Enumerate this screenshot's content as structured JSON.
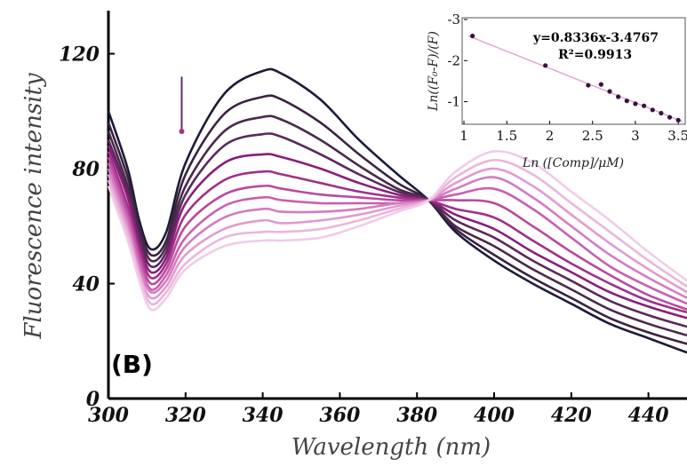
{
  "chart_data": [
    {
      "type": "line",
      "panel_label": "(B)",
      "xlabel": "Wavelength (nm)",
      "ylabel": "Fluorescence intensity",
      "xlim": [
        300,
        450
      ],
      "ylim": [
        0,
        135
      ],
      "xticks": [
        "300",
        "320",
        "340",
        "360",
        "380",
        "400",
        "420",
        "440"
      ],
      "yticks": [
        "0",
        "40",
        "80",
        "120"
      ],
      "ytick_values": [
        0,
        40,
        80,
        120
      ],
      "xtick_values": [
        300,
        320,
        340,
        360,
        380,
        400,
        420,
        440
      ],
      "grid": false,
      "arrow": {
        "x": 319,
        "y_from": 112,
        "y_to": 93,
        "color": "#b0307f"
      },
      "x": [
        300,
        305,
        308,
        311,
        315,
        320,
        330,
        340,
        345,
        355,
        365,
        375,
        383,
        390,
        400,
        410,
        420,
        430,
        440,
        450
      ],
      "series": [
        {
          "color": "#1e1b3a",
          "values": [
            100,
            80,
            62,
            52,
            58,
            82,
            106,
            114,
            113,
            104,
            90,
            78,
            69,
            58,
            48,
            40,
            33,
            26,
            21,
            16
          ]
        },
        {
          "color": "#3a2340",
          "values": [
            96,
            77,
            60,
            50,
            55,
            78,
            99,
            105,
            104,
            96,
            85,
            75,
            69,
            59,
            50,
            42,
            35,
            28,
            23,
            19
          ]
        },
        {
          "color": "#4a2a4c",
          "values": [
            93,
            74,
            58,
            48,
            53,
            74,
            93,
            98,
            97,
            90,
            81,
            73,
            69,
            60,
            53,
            45,
            38,
            31,
            26,
            22
          ]
        },
        {
          "color": "#5a2a5a",
          "values": [
            90,
            72,
            56,
            46,
            51,
            71,
            88,
            92,
            91,
            85,
            78,
            72,
            69,
            62,
            56,
            48,
            41,
            34,
            29,
            25
          ]
        },
        {
          "color": "#8a1e7a",
          "values": [
            88,
            70,
            54,
            44,
            49,
            68,
            82,
            85,
            84,
            80,
            75,
            71,
            69,
            64,
            59,
            51,
            44,
            37,
            32,
            28
          ]
        },
        {
          "color": "#a0308a",
          "values": [
            86,
            67,
            52,
            42,
            47,
            64,
            76,
            79,
            78,
            75,
            72,
            70,
            69,
            66,
            63,
            55,
            47,
            40,
            34,
            30
          ]
        },
        {
          "color": "#b84a9e",
          "values": [
            84,
            65,
            50,
            40,
            45,
            60,
            71,
            74,
            73,
            71,
            70,
            69,
            69,
            69,
            68,
            60,
            51,
            43,
            36,
            31
          ]
        },
        {
          "color": "#c860b0",
          "values": [
            82,
            63,
            48,
            38,
            43,
            56,
            67,
            70,
            69,
            68,
            68,
            68,
            69,
            71,
            73,
            66,
            56,
            46,
            39,
            33
          ]
        },
        {
          "color": "#d57bc0",
          "values": [
            80,
            61,
            46,
            37,
            41,
            53,
            63,
            66,
            65,
            65,
            66,
            68,
            69,
            73,
            77,
            70,
            60,
            50,
            42,
            35
          ]
        },
        {
          "color": "#e29ad0",
          "values": [
            78,
            59,
            44,
            35,
            39,
            50,
            59,
            62,
            61,
            62,
            64,
            67,
            69,
            75,
            80,
            74,
            64,
            54,
            45,
            37
          ]
        },
        {
          "color": "#eab6dc",
          "values": [
            76,
            57,
            43,
            33,
            37,
            47,
            56,
            58,
            58,
            59,
            62,
            66,
            69,
            77,
            83,
            78,
            68,
            58,
            48,
            39
          ]
        },
        {
          "color": "#f0cce8",
          "values": [
            74,
            55,
            41,
            31,
            35,
            45,
            53,
            55,
            55,
            56,
            60,
            65,
            69,
            79,
            86,
            82,
            72,
            62,
            51,
            41
          ]
        }
      ]
    },
    {
      "type": "scatter",
      "subtype": "inset-linear-fit",
      "xlabel": "Ln ([Comp]/μM)",
      "ylabel": "Ln((F₀-F)/(F)",
      "xlim": [
        1,
        3.55
      ],
      "ylim": [
        -0.45,
        -3.0
      ],
      "y_inverted": true,
      "xticks": [
        "1",
        "1.5",
        "2",
        "2.5",
        "3",
        "3.5"
      ],
      "xtick_values": [
        1,
        1.5,
        2,
        2.5,
        3,
        3.5
      ],
      "yticks": [
        "-3",
        "-2",
        "-1"
      ],
      "ytick_values": [
        -3,
        -2,
        -1
      ],
      "equation": "y=0.8336x-3.4767",
      "r_squared": "R²=0.9913",
      "fit": {
        "slope": 0.8336,
        "intercept": -3.4767,
        "color": "#e3a9cf"
      },
      "point_color": "#3a1242",
      "points": [
        {
          "x": 1.1,
          "y": -2.6
        },
        {
          "x": 1.95,
          "y": -1.88
        },
        {
          "x": 2.45,
          "y": -1.4
        },
        {
          "x": 2.6,
          "y": -1.42
        },
        {
          "x": 2.7,
          "y": -1.25
        },
        {
          "x": 2.8,
          "y": -1.12
        },
        {
          "x": 2.9,
          "y": -1.02
        },
        {
          "x": 3.0,
          "y": -0.95
        },
        {
          "x": 3.1,
          "y": -0.9
        },
        {
          "x": 3.2,
          "y": -0.8
        },
        {
          "x": 3.3,
          "y": -0.72
        },
        {
          "x": 3.4,
          "y": -0.62
        },
        {
          "x": 3.5,
          "y": -0.55
        }
      ]
    }
  ]
}
